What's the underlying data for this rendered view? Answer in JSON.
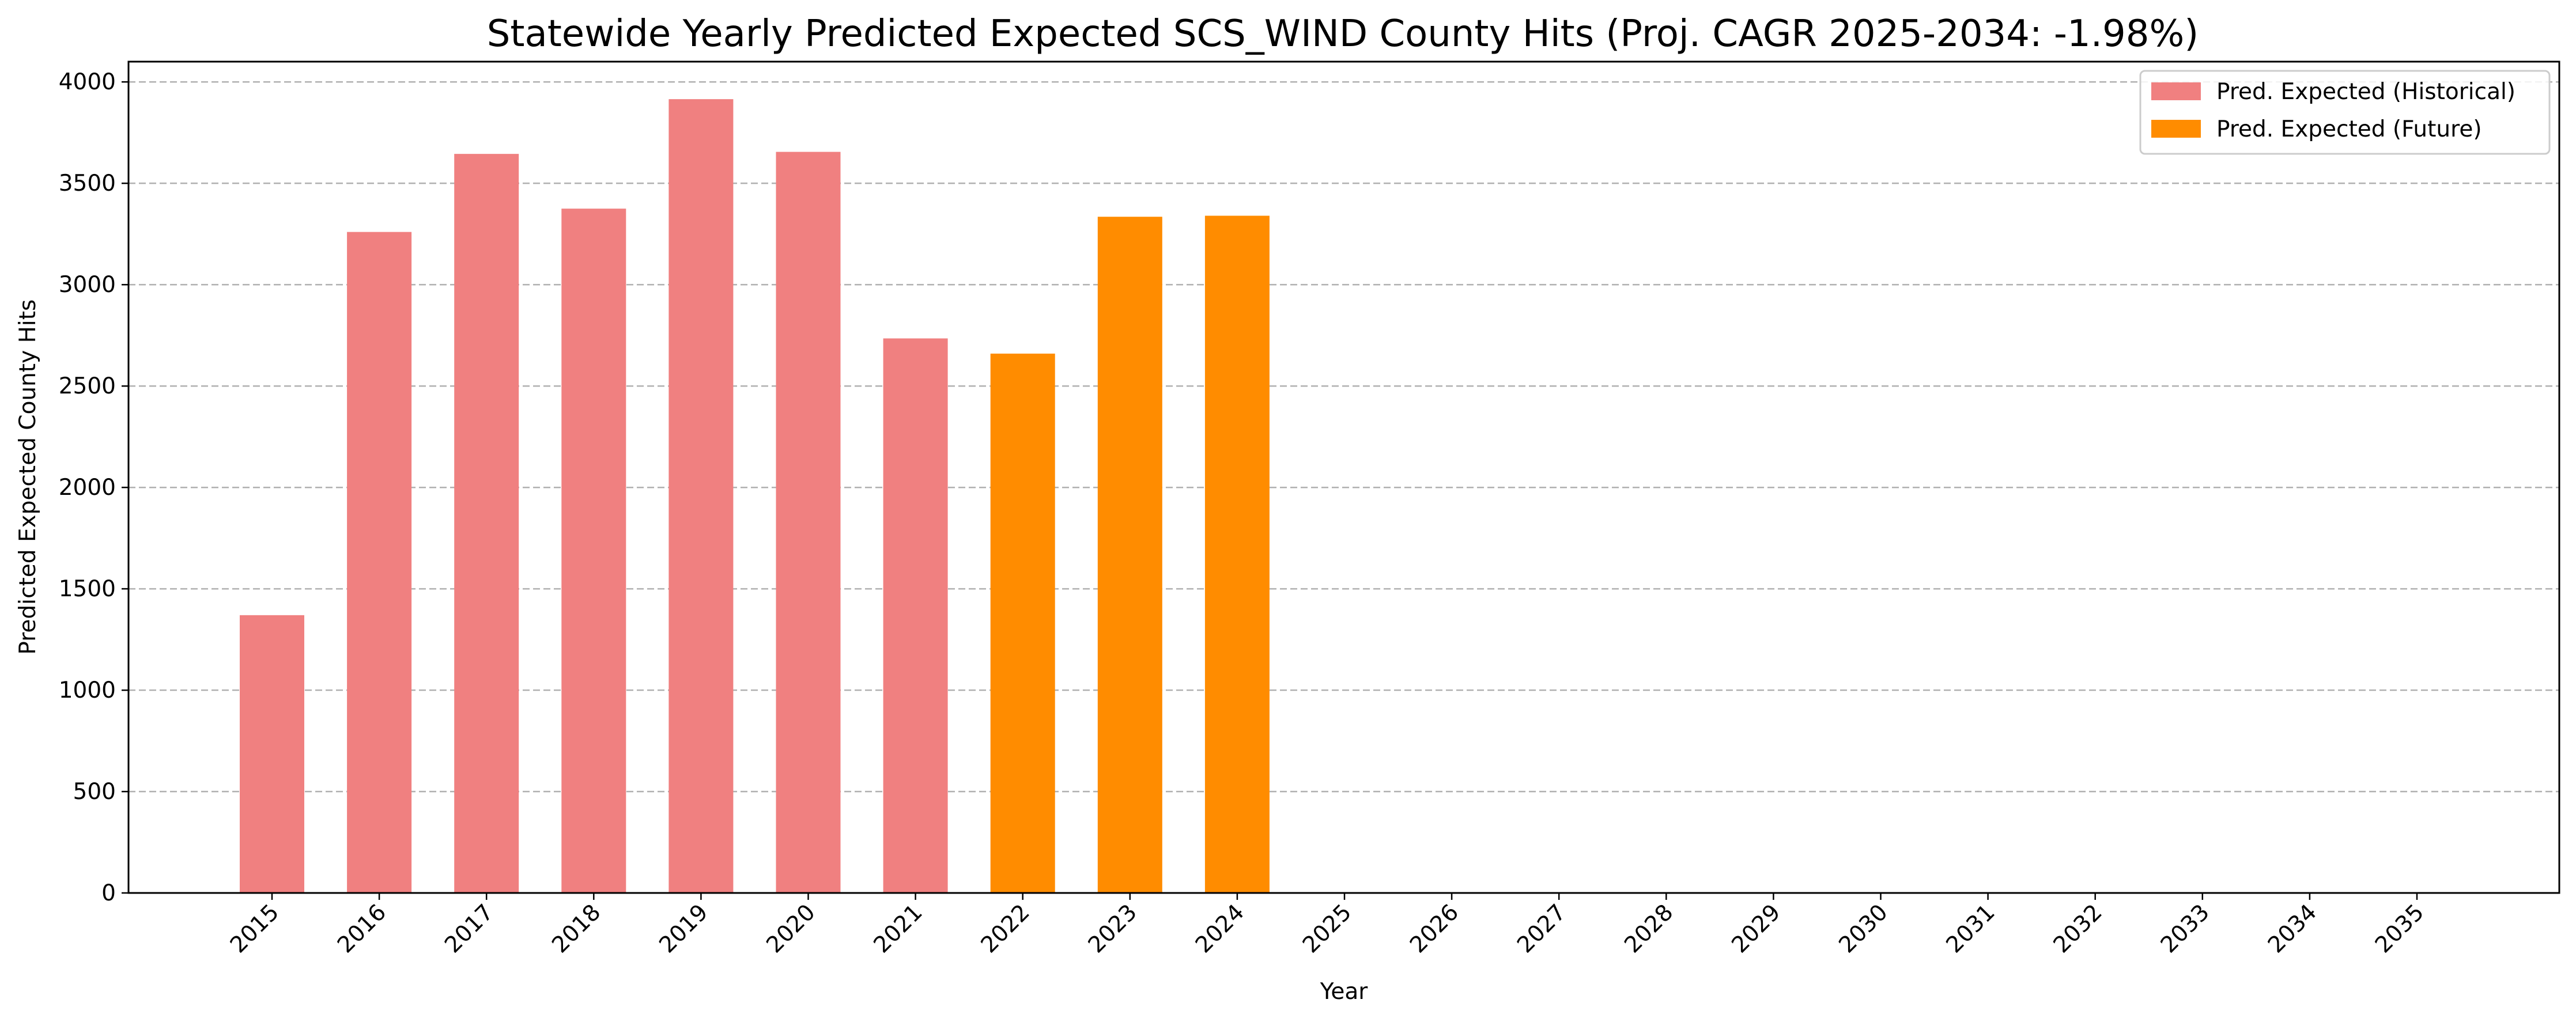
{
  "chart_data": {
    "type": "bar",
    "title": "Statewide Yearly Predicted Expected SCS_WIND County Hits (Proj. CAGR 2025-2034: -1.98%)",
    "xlabel": "Year",
    "ylabel": "Predicted Expected County Hits",
    "ylim": [
      0,
      4100
    ],
    "yticks": [
      0,
      500,
      1000,
      1500,
      2000,
      2500,
      3000,
      3500,
      4000
    ],
    "grid": "y-dashed",
    "legend_position": "top-right",
    "categories": [
      "2015",
      "2016",
      "2017",
      "2018",
      "2019",
      "2020",
      "2021",
      "2022",
      "2023",
      "2024",
      "2025",
      "2026",
      "2027",
      "2028",
      "2029",
      "2030",
      "2031",
      "2032",
      "2033",
      "2034",
      "2035"
    ],
    "series": [
      {
        "name": "Pred. Expected (Historical)",
        "color": "#f08080",
        "values": [
          1370,
          3260,
          3645,
          3375,
          3915,
          3655,
          2735,
          null,
          null,
          null,
          null,
          null,
          null,
          null,
          null,
          null,
          null,
          null,
          null,
          null,
          null
        ]
      },
      {
        "name": "Pred. Expected (Future)",
        "color": "#ff8c00",
        "values": [
          null,
          null,
          null,
          null,
          null,
          null,
          null,
          2660,
          3335,
          3340,
          null,
          null,
          null,
          null,
          null,
          null,
          null,
          null,
          null,
          null,
          null
        ]
      }
    ]
  }
}
